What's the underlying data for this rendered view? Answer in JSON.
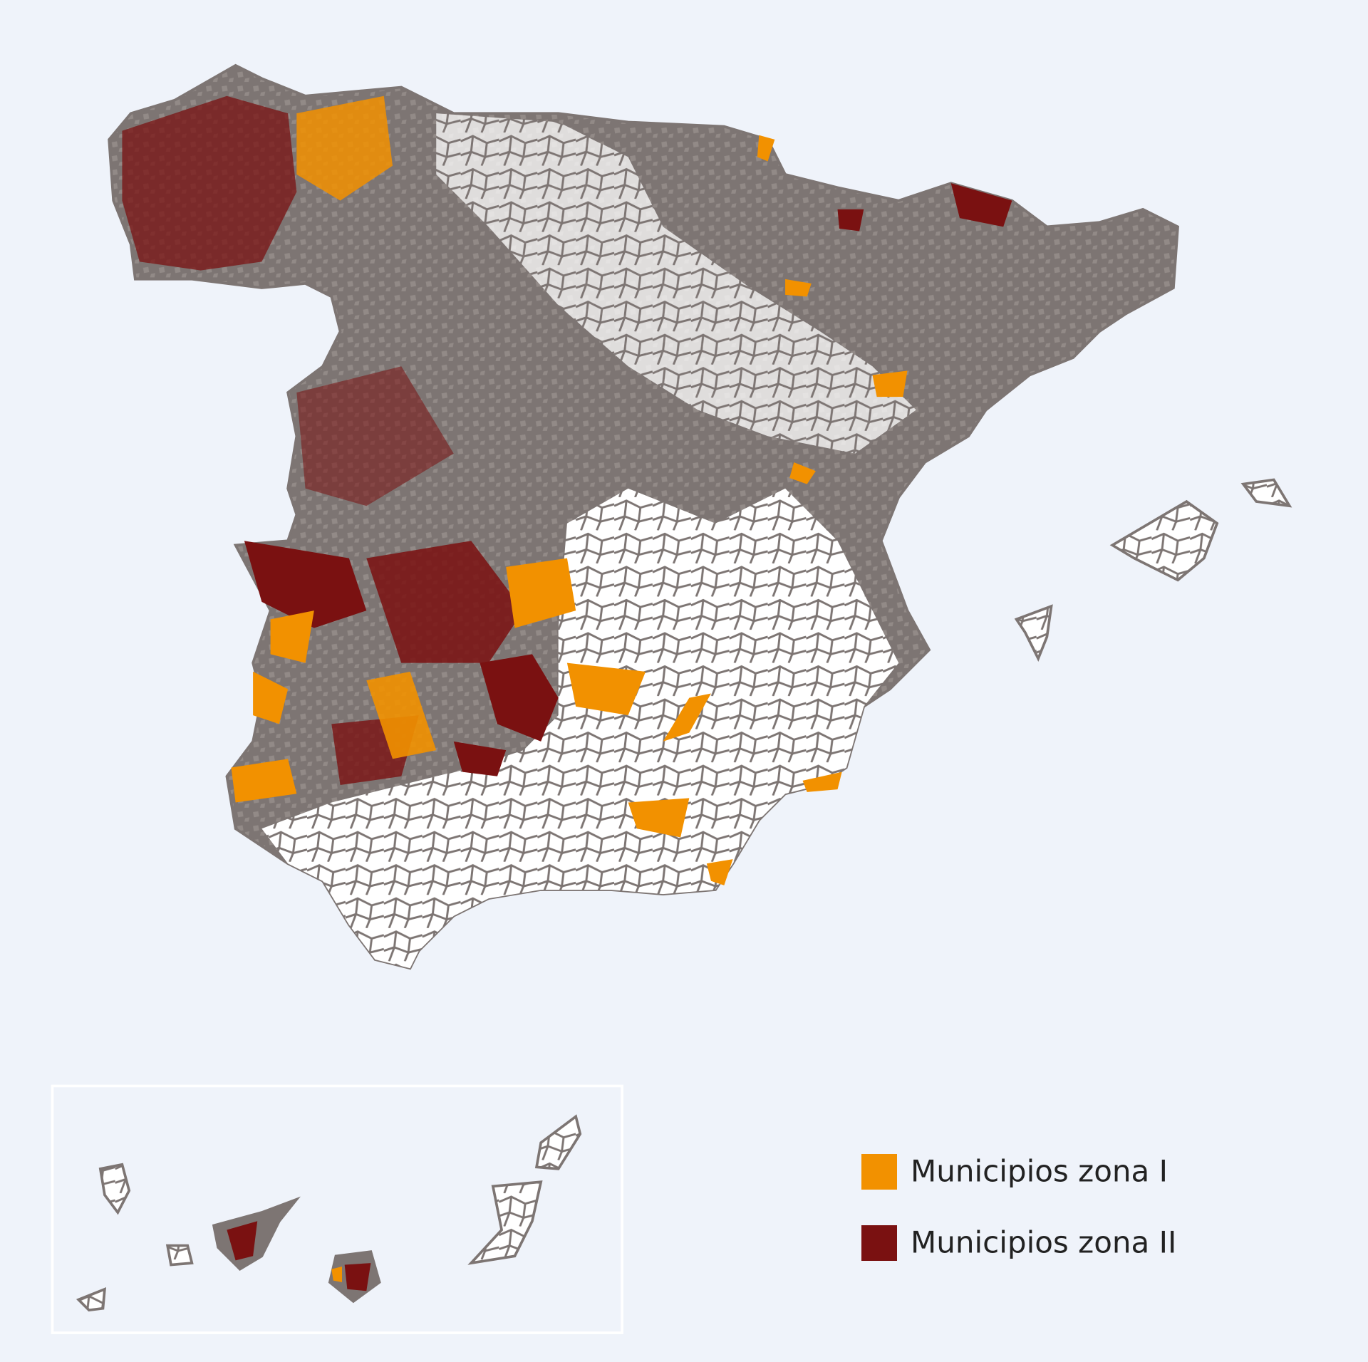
{
  "legend": {
    "items": [
      {
        "label": "Municipios zona I",
        "color": "#f29100"
      },
      {
        "label": "Municipios zona II",
        "color": "#7a1111"
      }
    ]
  }
}
